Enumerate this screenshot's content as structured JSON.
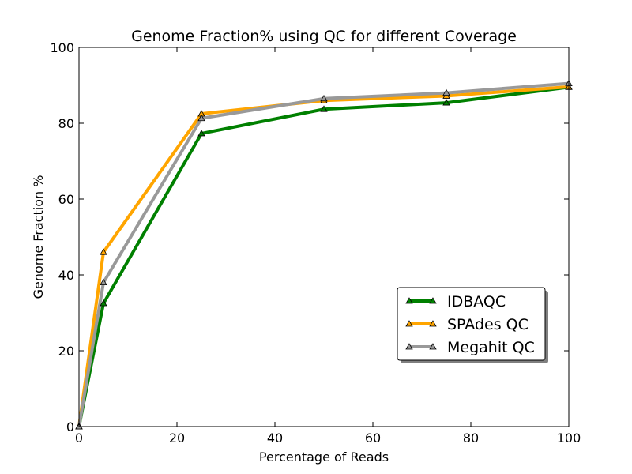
{
  "chart_data": {
    "type": "line",
    "title": "Genome Fraction% using QC for different Coverage",
    "xlabel": "Percentage of Reads",
    "ylabel": "Genome Fraction %",
    "xlim": [
      0,
      100
    ],
    "ylim": [
      0,
      100
    ],
    "xticks": [
      0,
      20,
      40,
      60,
      80,
      100
    ],
    "yticks": [
      0,
      20,
      40,
      60,
      80,
      100
    ],
    "grid": false,
    "legend_position": "lower-right",
    "x": [
      0,
      5,
      25,
      50,
      75,
      100
    ],
    "series": [
      {
        "name": "IDBAQC",
        "color": "#008000",
        "marker": "triangle-up",
        "values": [
          0,
          32.5,
          77.3,
          83.7,
          85.4,
          89.5
        ]
      },
      {
        "name": "SPAdes QC",
        "color": "#ffa500",
        "marker": "triangle-up",
        "values": [
          0,
          46.0,
          82.5,
          86.0,
          87.2,
          89.6
        ]
      },
      {
        "name": "Megahit QC",
        "color": "#999999",
        "marker": "triangle-up",
        "values": [
          0,
          38.0,
          81.3,
          86.5,
          88.0,
          90.5
        ]
      }
    ]
  }
}
